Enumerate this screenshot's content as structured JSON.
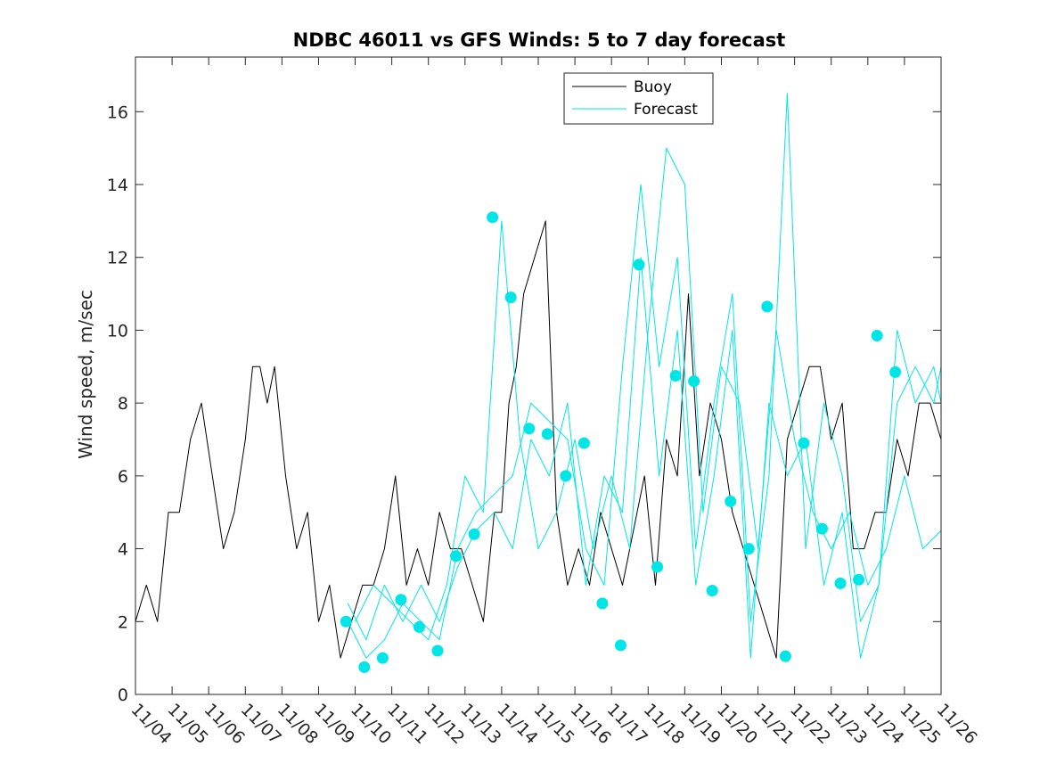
{
  "chart_data": {
    "type": "line",
    "title": "NDBC 46011 vs GFS Winds: 5 to 7 day forecast",
    "xlabel": "",
    "ylabel": "Wind speed, m/sec",
    "xlim": [
      0,
      22
    ],
    "ylim": [
      0,
      17.5
    ],
    "x_tick_labels": [
      "11/04",
      "11/05",
      "11/06",
      "11/07",
      "11/08",
      "11/09",
      "11/10",
      "11/11",
      "11/12",
      "11/13",
      "11/14",
      "11/15",
      "11/16",
      "11/17",
      "11/18",
      "11/19",
      "11/20",
      "11/21",
      "11/22",
      "11/23",
      "11/24",
      "11/25",
      "11/26"
    ],
    "y_ticks": [
      0,
      2,
      4,
      6,
      8,
      10,
      12,
      14,
      16
    ],
    "legend": {
      "placement": "top-right-center",
      "entries": [
        "Buoy",
        "Forecast"
      ]
    },
    "colors": {
      "buoy": "#000000",
      "forecast": "#00e5e5",
      "markers": "#00e5e5"
    },
    "series": [
      {
        "name": "Buoy",
        "x": [
          0,
          0.3,
          0.6,
          0.9,
          1.2,
          1.5,
          1.8,
          2.1,
          2.4,
          2.7,
          3.0,
          3.2,
          3.4,
          3.6,
          3.8,
          4.1,
          4.4,
          4.7,
          5.0,
          5.3,
          5.6,
          5.9,
          6.2,
          6.5,
          6.8,
          7.1,
          7.4,
          7.7,
          8.0,
          8.3,
          8.6,
          8.9,
          9.2,
          9.5,
          9.8,
          10.0,
          10.2,
          10.4,
          10.6,
          10.9,
          11.2,
          11.5,
          11.8,
          12.1,
          12.4,
          12.7,
          13.0,
          13.3,
          13.5,
          13.7,
          13.9,
          14.2,
          14.5,
          14.8,
          15.1,
          15.4,
          15.7,
          16.0,
          16.3,
          16.6,
          16.9,
          17.2,
          17.5,
          17.8,
          18.1,
          18.4,
          18.7,
          19.0,
          19.3,
          19.6,
          19.9,
          20.2,
          20.5,
          20.8,
          21.1,
          21.4,
          21.7,
          22.0
        ],
        "values": [
          2,
          3,
          2,
          5,
          5,
          7,
          8,
          6,
          4,
          5,
          7,
          9,
          9,
          8,
          9,
          6,
          4,
          5,
          2,
          3,
          1,
          2,
          3,
          3,
          4,
          6,
          3,
          4,
          3,
          5,
          4,
          4,
          3,
          2,
          5,
          5,
          8,
          9,
          11,
          12,
          13,
          5,
          3,
          4,
          3,
          5,
          4,
          3,
          4,
          5,
          6,
          3,
          7,
          6,
          11,
          6,
          8,
          7,
          5,
          4,
          3,
          2,
          1,
          7,
          8,
          9,
          9,
          7,
          8,
          4,
          4,
          5,
          5,
          7,
          6,
          8,
          8,
          7
        ],
        "color": "#000000"
      },
      {
        "name": "Forecast",
        "x": [
          5.8,
          6.3,
          6.8,
          7.3,
          7.8,
          8.3,
          8.8,
          9.3,
          9.8,
          10.3,
          10.8,
          11.3,
          11.8,
          12.3,
          12.8,
          13.3,
          13.8,
          14.3,
          14.8,
          15.3,
          15.8,
          16.3,
          16.8,
          17.3,
          17.8,
          18.3,
          18.8,
          19.3,
          19.8,
          20.3,
          20.8,
          21.3,
          21.8,
          22.0
        ],
        "values": [
          2,
          1,
          1.5,
          2.5,
          2,
          1.5,
          4,
          5,
          5.5,
          6,
          8,
          7.5,
          7,
          4,
          3,
          9,
          14,
          9,
          12,
          4,
          8,
          11,
          2,
          6,
          16.5,
          4,
          8,
          6,
          2,
          3,
          8,
          9,
          8,
          9
        ],
        "color": "#00e5e5"
      },
      {
        "name": "Forecast",
        "x": [
          5.8,
          6.3,
          6.8,
          7.3,
          7.8,
          8.3,
          8.8,
          9.3,
          9.8,
          10.3,
          10.8,
          11.3,
          11.8,
          12.3,
          12.8,
          13.3,
          13.8,
          14.3,
          14.8,
          15.3,
          15.8,
          16.3,
          16.8,
          17.3,
          17.8,
          18.3,
          18.8,
          19.3,
          19.8,
          20.3,
          20.8,
          21.3,
          21.8,
          22.0
        ],
        "values": [
          2.5,
          1.5,
          3,
          2,
          3,
          2,
          3.5,
          4.5,
          5,
          4,
          7,
          6,
          8,
          3,
          6,
          5,
          12,
          6,
          10,
          3,
          6,
          10,
          1,
          8,
          6,
          7,
          3,
          5,
          1,
          3,
          10,
          8,
          9,
          8
        ],
        "color": "#00e5e5"
      },
      {
        "name": "Forecast",
        "x": [
          6.0,
          6.5,
          7.0,
          7.5,
          8.0,
          8.5,
          9.0,
          9.5,
          10.0,
          10.5,
          11.0,
          11.5,
          12.0,
          12.5,
          13.0,
          13.5,
          14.0,
          14.5,
          15.0,
          15.5,
          16.0,
          16.5,
          17.0,
          17.5,
          18.0,
          18.5,
          19.0,
          19.5,
          20.0,
          20.5,
          21.0,
          21.5,
          22.0
        ],
        "values": [
          2,
          3,
          2.5,
          2,
          1.5,
          3,
          6,
          5,
          13,
          7,
          4,
          5,
          7,
          4,
          6,
          4,
          10,
          15,
          14,
          5,
          9,
          8,
          4,
          10,
          7,
          5,
          4,
          5,
          3,
          4,
          6,
          4,
          4.5
        ],
        "color": "#00e5e5"
      }
    ],
    "markers": {
      "name": "Forecast points",
      "x": [
        5.75,
        6.25,
        6.75,
        7.25,
        7.75,
        8.25,
        8.75,
        9.25,
        9.75,
        10.25,
        10.75,
        11.25,
        11.75,
        12.25,
        12.75,
        13.25,
        13.75,
        14.25,
        14.75,
        15.25,
        15.75,
        16.25,
        16.75,
        17.25,
        17.75,
        18.25,
        18.75,
        19.25,
        19.75,
        20.25,
        20.75,
        21.25,
        21.75
      ],
      "values": [
        2,
        0.75,
        1,
        2.6,
        1.85,
        1.2,
        3.8,
        4.4,
        13.1,
        10.9,
        7.3,
        7.15,
        6,
        6.9,
        2.5,
        1.35,
        11.8,
        3.5,
        8.75,
        8.6,
        2.85,
        5.3,
        4,
        10.65,
        1.05,
        6.9,
        4.55,
        3.05,
        3.15,
        9.85,
        8.85,
        null,
        null
      ]
    }
  }
}
